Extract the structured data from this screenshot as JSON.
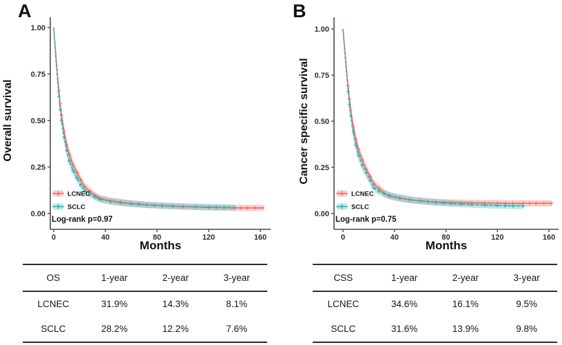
{
  "figure": {
    "panels": [
      {
        "label": "A"
      },
      {
        "label": "B"
      }
    ]
  },
  "chart_data": [
    {
      "type": "line",
      "subtype": "kaplan-meier-survival",
      "ylabel": "Overall survival",
      "xlabel": "Months",
      "annotation": "Log-rank p=0.97",
      "xlim": [
        0,
        167
      ],
      "ylim": [
        0,
        1
      ],
      "x_ticks": [
        0,
        40,
        80,
        120,
        160
      ],
      "y_ticks": [
        1.0,
        0.75,
        0.5,
        0.25,
        0.0
      ],
      "legend_position": "bottom-left",
      "grid": false,
      "series": [
        {
          "name": "LCNEC",
          "color": "#ee6a63",
          "band_color": "rgba(240,128,122,0.38)",
          "line_style": "solid",
          "x": [
            0,
            1,
            2,
            3,
            4,
            5,
            6,
            8,
            10,
            12,
            15,
            18,
            21,
            24,
            28,
            32,
            36,
            44,
            52,
            60,
            72,
            84,
            100,
            120,
            132,
            140,
            150,
            162
          ],
          "y": [
            1.0,
            0.91,
            0.82,
            0.74,
            0.66,
            0.59,
            0.53,
            0.44,
            0.37,
            0.319,
            0.26,
            0.22,
            0.18,
            0.143,
            0.12,
            0.097,
            0.081,
            0.068,
            0.06,
            0.054,
            0.047,
            0.042,
            0.037,
            0.033,
            0.031,
            0.03,
            0.03,
            0.03
          ]
        },
        {
          "name": "SCLC",
          "color": "#1fb6ba",
          "band_color": "rgba(64,190,194,0.35)",
          "line_style": "dashed",
          "x": [
            0,
            1,
            2,
            3,
            4,
            5,
            6,
            8,
            10,
            12,
            15,
            18,
            21,
            24,
            28,
            32,
            36,
            44,
            52,
            60,
            72,
            84,
            100,
            120,
            132,
            140
          ],
          "y": [
            1.0,
            0.9,
            0.8,
            0.71,
            0.63,
            0.56,
            0.5,
            0.41,
            0.34,
            0.282,
            0.23,
            0.19,
            0.153,
            0.122,
            0.104,
            0.089,
            0.076,
            0.065,
            0.058,
            0.052,
            0.046,
            0.042,
            0.038,
            0.034,
            0.033,
            0.032
          ]
        }
      ]
    },
    {
      "type": "line",
      "subtype": "kaplan-meier-survival",
      "ylabel": "Cancer specific survival",
      "xlabel": "Months",
      "annotation": "Log-rank p=0.75",
      "xlim": [
        0,
        167
      ],
      "ylim": [
        0,
        1
      ],
      "x_ticks": [
        0,
        40,
        80,
        120,
        160
      ],
      "y_ticks": [
        1.0,
        0.75,
        0.5,
        0.25,
        0.0
      ],
      "legend_position": "bottom-left",
      "grid": false,
      "series": [
        {
          "name": "LCNEC",
          "color": "#ee6a63",
          "band_color": "rgba(240,128,122,0.38)",
          "line_style": "solid",
          "x": [
            0,
            1,
            2,
            3,
            4,
            5,
            6,
            8,
            10,
            12,
            15,
            18,
            21,
            24,
            28,
            32,
            36,
            44,
            52,
            60,
            72,
            84,
            100,
            120,
            132,
            140,
            150,
            162
          ],
          "y": [
            1.0,
            0.92,
            0.84,
            0.76,
            0.69,
            0.62,
            0.56,
            0.47,
            0.4,
            0.346,
            0.29,
            0.24,
            0.2,
            0.161,
            0.135,
            0.11,
            0.095,
            0.082,
            0.074,
            0.068,
            0.062,
            0.059,
            0.057,
            0.056,
            0.055,
            0.055,
            0.055,
            0.055
          ]
        },
        {
          "name": "SCLC",
          "color": "#1fb6ba",
          "band_color": "rgba(64,190,194,0.35)",
          "line_style": "dashed",
          "x": [
            0,
            1,
            2,
            3,
            4,
            5,
            6,
            8,
            10,
            12,
            15,
            18,
            21,
            24,
            28,
            32,
            36,
            44,
            52,
            60,
            72,
            84,
            100,
            120,
            132,
            140
          ],
          "y": [
            1.0,
            0.91,
            0.82,
            0.74,
            0.66,
            0.59,
            0.53,
            0.44,
            0.37,
            0.316,
            0.26,
            0.22,
            0.18,
            0.139,
            0.12,
            0.108,
            0.098,
            0.085,
            0.075,
            0.068,
            0.06,
            0.054,
            0.048,
            0.043,
            0.041,
            0.04
          ]
        }
      ]
    }
  ],
  "tables": [
    {
      "header": [
        "OS",
        "1-year",
        "2-year",
        "3-year"
      ],
      "rows": [
        [
          "LCNEC",
          "31.9%",
          "14.3%",
          "8.1%"
        ],
        [
          "SCLC",
          "28.2%",
          "12.2%",
          "7.6%"
        ]
      ]
    },
    {
      "header": [
        "CSS",
        "1-year",
        "2-year",
        "3-year"
      ],
      "rows": [
        [
          "LCNEC",
          "34.6%",
          "16.1%",
          "9.5%"
        ],
        [
          "SCLC",
          "31.6%",
          "13.9%",
          "9.8%"
        ]
      ]
    }
  ]
}
